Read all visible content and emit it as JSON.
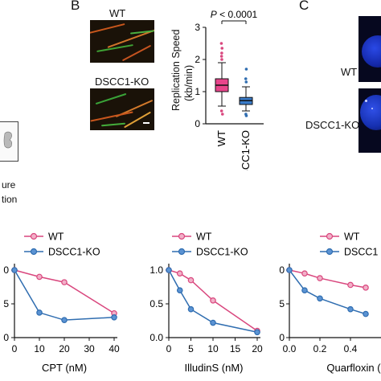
{
  "panels": {
    "B": "B",
    "C": "C"
  },
  "left_fragment": {
    "line1": "ure",
    "line2": "tion"
  },
  "panel_b": {
    "img_top_label": "WT",
    "img_bottom_label": "DSCC1-KO"
  },
  "panel_c": {
    "label_top": "WT",
    "label_bottom": "DSCC1-KO"
  },
  "colors": {
    "wt": "#d9477e",
    "ko": "#2f6db0",
    "wt_box": "#e8458b",
    "ko_box": "#3a7cc9",
    "nucleus": "#1f36c8"
  },
  "chart_data": [
    {
      "type": "box",
      "ylabel": "Replication Speed\n(kb/min)",
      "ylim": [
        0,
        3
      ],
      "yticks": [
        "0",
        "1",
        "2",
        "3"
      ],
      "categories": [
        "WT",
        "DSCC1-KO"
      ],
      "annotation": "P < 0.0001",
      "boxes": [
        {
          "name": "WT",
          "q1": 1.0,
          "median": 1.2,
          "q3": 1.4,
          "whisker_low": 0.55,
          "whisker_high": 1.9,
          "outliers": [
            0.4,
            0.3,
            2.0,
            2.1,
            2.2,
            2.35,
            2.5
          ]
        },
        {
          "name": "DSCC1-KO",
          "q1": 0.6,
          "median": 0.72,
          "q3": 0.82,
          "whisker_low": 0.4,
          "whisker_high": 1.15,
          "outliers": [
            0.25,
            0.3,
            1.3,
            1.4,
            1.7
          ]
        }
      ]
    },
    {
      "type": "line",
      "xlabel": "CPT (nM)",
      "xticks": [
        "0",
        "10",
        "20",
        "30",
        "40"
      ],
      "yticks": [
        "0",
        "5",
        "0"
      ],
      "legend": [
        "WT",
        "DSCC1-KO"
      ],
      "series": [
        {
          "name": "WT",
          "x": [
            0,
            10,
            20,
            40
          ],
          "y": [
            1.0,
            0.9,
            0.82,
            0.36
          ]
        },
        {
          "name": "DSCC1-KO",
          "x": [
            0,
            10,
            20,
            40
          ],
          "y": [
            1.0,
            0.37,
            0.26,
            0.3
          ]
        }
      ],
      "xlim": [
        0,
        40
      ],
      "ylim": [
        0,
        1.0
      ]
    },
    {
      "type": "line",
      "xlabel": "IlludinS (nM)",
      "xticks": [
        "0",
        "5",
        "10",
        "15",
        "20"
      ],
      "yticks": [
        "0.0",
        "0.5",
        "1.0"
      ],
      "legend": [
        "WT",
        "DSCC1-KO"
      ],
      "series": [
        {
          "name": "WT",
          "x": [
            0,
            2.5,
            5,
            10,
            20
          ],
          "y": [
            1.0,
            0.95,
            0.85,
            0.55,
            0.1
          ]
        },
        {
          "name": "DSCC1-KO",
          "x": [
            0,
            2.5,
            5,
            10,
            20
          ],
          "y": [
            1.0,
            0.7,
            0.42,
            0.22,
            0.08
          ]
        }
      ],
      "xlim": [
        0,
        20
      ],
      "ylim": [
        0,
        1.0
      ]
    },
    {
      "type": "line",
      "xlabel": "Quarfloxin (",
      "xticks": [
        "0.0",
        "0.2",
        "0.4"
      ],
      "yticks": [
        "0",
        "5",
        "0"
      ],
      "legend": [
        "WT",
        "DSCC1"
      ],
      "series": [
        {
          "name": "WT",
          "x": [
            0,
            0.1,
            0.2,
            0.4,
            0.5
          ],
          "y": [
            1.0,
            0.95,
            0.88,
            0.78,
            0.74
          ]
        },
        {
          "name": "DSCC1",
          "x": [
            0,
            0.1,
            0.2,
            0.4,
            0.5
          ],
          "y": [
            1.0,
            0.7,
            0.58,
            0.42,
            0.35
          ]
        }
      ],
      "xlim": [
        0,
        0.6
      ],
      "ylim": [
        0,
        1.0
      ]
    }
  ]
}
